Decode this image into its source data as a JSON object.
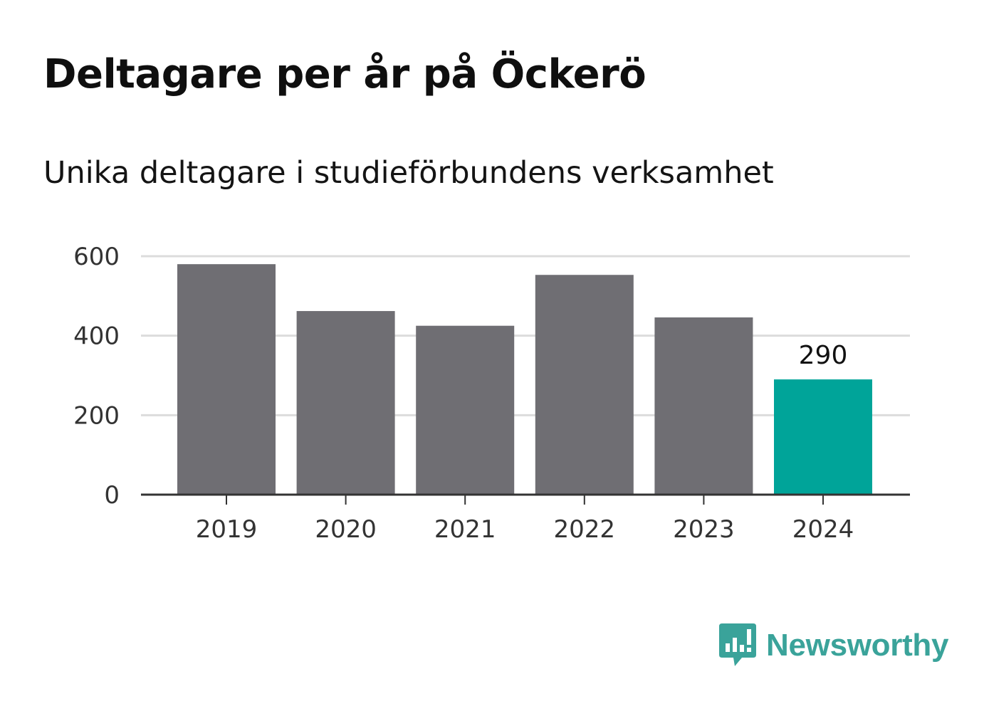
{
  "title": "Deltagare per år på Öckerö",
  "subtitle": "Unika deltagare i studieförbundens verksamhet",
  "brand": {
    "name": "Newsworthy",
    "icon": "newsworthy-logo-icon",
    "color": "#3aa39a"
  },
  "chart_data": {
    "type": "bar",
    "categories": [
      "2019",
      "2020",
      "2021",
      "2022",
      "2023",
      "2024"
    ],
    "values": [
      580,
      462,
      425,
      553,
      446,
      290
    ],
    "highlight_index": 5,
    "highlight_label": "290",
    "ylim": [
      0,
      600
    ],
    "yticks": [
      0,
      200,
      400,
      600
    ],
    "ytick_labels": [
      "0",
      "200",
      "400",
      "600"
    ],
    "grid": true,
    "colors": {
      "bar": "#6f6e73",
      "highlight": "#00a499",
      "grid": "#dcdcdc",
      "axis": "#333333"
    }
  }
}
